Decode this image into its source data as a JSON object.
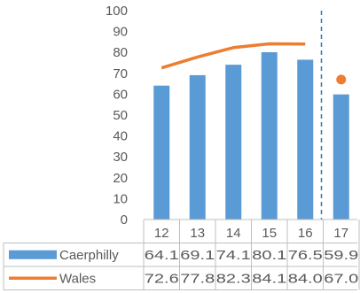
{
  "chart_data": {
    "type": "bar",
    "categories": [
      "12",
      "13",
      "14",
      "15",
      "16",
      "17"
    ],
    "series": [
      {
        "name": "Caerphilly",
        "type": "bar",
        "color": "#5b9bd5",
        "values": [
          64.1,
          69.1,
          74.1,
          80.1,
          76.5,
          59.9
        ],
        "labels": [
          "64.1",
          "69.1",
          "74.1",
          "80.1",
          "76.5",
          "59.9"
        ]
      },
      {
        "name": "Wales",
        "type": "line",
        "color": "#ed7d31",
        "values": [
          72.6,
          77.8,
          82.3,
          84.1,
          84.0,
          67.0
        ],
        "labels": [
          "72.6",
          "77.8",
          "82.3",
          "84.1",
          "84.0",
          "67.0"
        ]
      }
    ],
    "y_ticks": [
      "0",
      "10",
      "20",
      "30",
      "40",
      "50",
      "60",
      "70",
      "80",
      "90",
      "100"
    ],
    "ylim": [
      0,
      100
    ],
    "grid": false,
    "legend": "data-table",
    "divider_line": {
      "between": [
        "16",
        "17"
      ],
      "color": "#2e75b6",
      "style": "dashed"
    }
  }
}
